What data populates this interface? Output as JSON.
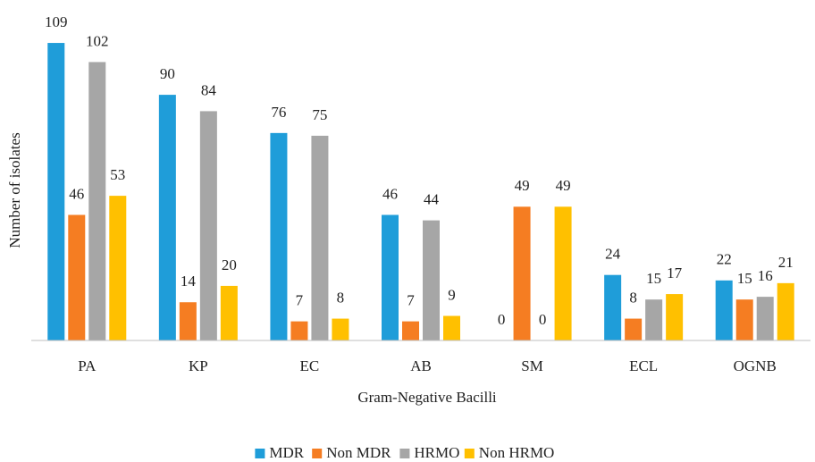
{
  "chart_data": {
    "type": "bar",
    "x_label": "Gram-Negative Bacilli",
    "y_label": "Number of isolates",
    "categories": [
      "PA",
      "KP",
      "EC",
      "AB",
      "SM",
      "ECL",
      "OGNB"
    ],
    "series": [
      {
        "name": "MDR",
        "color": "#1f9dd9",
        "values": [
          109,
          90,
          76,
          46,
          0,
          24,
          22
        ]
      },
      {
        "name": "Non MDR",
        "color": "#f57d22",
        "values": [
          46,
          14,
          7,
          7,
          49,
          8,
          15
        ]
      },
      {
        "name": "HRMO",
        "color": "#a6a6a6",
        "values": [
          102,
          84,
          75,
          44,
          0,
          15,
          16
        ]
      },
      {
        "name": "Non HRMO",
        "color": "#ffc000",
        "values": [
          53,
          20,
          8,
          9,
          49,
          17,
          21
        ]
      }
    ],
    "ylim": [
      0,
      110
    ],
    "legend": "bottom"
  }
}
